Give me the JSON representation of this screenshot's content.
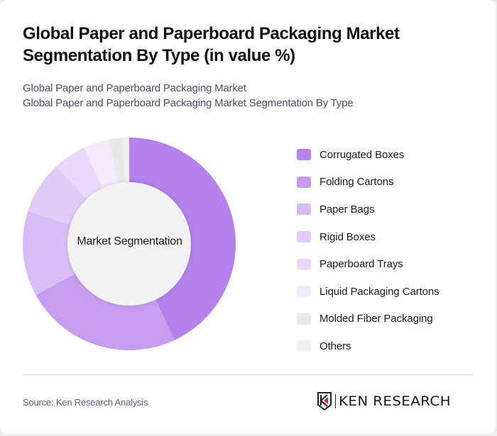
{
  "header": {
    "title": "Global Paper and Paperboard Packaging Market Segmentation By Type (in value %)",
    "subtitle_line1": "Global Paper and Paperboard Packaging Market",
    "subtitle_line2": "Global Paper and Paperboard Packaging Market Segmentation By Type"
  },
  "chart": {
    "center_label": "Market Segmentation"
  },
  "legend": {
    "items": [
      {
        "label": "Corrugated Boxes",
        "color": "#B482EA"
      },
      {
        "label": "Folding Cartons",
        "color": "#C59DEE"
      },
      {
        "label": "Paper Bags",
        "color": "#D7BDF4"
      },
      {
        "label": "Rigid Boxes",
        "color": "#E1CCF6"
      },
      {
        "label": "Paperboard Trays",
        "color": "#E8DAF9"
      },
      {
        "label": "Liquid Packaging Cartons",
        "color": "#F2EBFC"
      },
      {
        "label": "Molded Fiber Packaging",
        "color": "#E8E8E8"
      },
      {
        "label": "Others",
        "color": "#F0F0F0"
      }
    ]
  },
  "footer": {
    "source": "Source: Ken Research Analysis",
    "logo_text": "KEN RESEARCH"
  },
  "chart_data": {
    "type": "pie",
    "variant": "donut",
    "title": "Global Paper and Paperboard Packaging Market Segmentation By Type (in value %)",
    "subtitle": "Global Paper and Paperboard Packaging Market Segmentation By Type",
    "center_label": "Market Segmentation",
    "categories": [
      "Corrugated Boxes",
      "Folding Cartons",
      "Paper Bags",
      "Rigid Boxes",
      "Paperboard Trays",
      "Liquid Packaging Cartons",
      "Molded Fiber Packaging",
      "Others"
    ],
    "values": [
      43,
      24,
      13,
      8,
      5,
      4,
      2,
      1
    ],
    "colors": [
      "#B482EA",
      "#C59DEE",
      "#D7BDF4",
      "#E1CCF6",
      "#E8DAF9",
      "#F2EBFC",
      "#E8E8E8",
      "#F0F0F0"
    ],
    "unit": "%",
    "legend_position": "right",
    "source": "Source: Ken Research Analysis"
  }
}
